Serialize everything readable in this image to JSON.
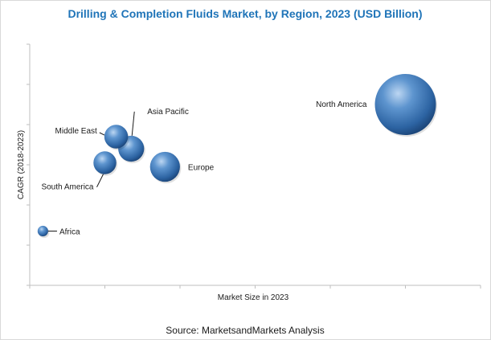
{
  "chart_data": {
    "type": "bubble",
    "title": "Drilling & Completion Fluids Market, by Region, 2023 (USD Billion)",
    "xlabel": "Market Size in 2023",
    "ylabel": "CAGR (2018-2023)",
    "source": "Source: MarketsandMarkets Analysis",
    "xlim": [
      0,
      12
    ],
    "ylim": [
      0,
      6
    ],
    "grid": false,
    "legend": "none",
    "bubble_color": "#2e69a8",
    "series": [
      {
        "name": "North America",
        "x": 10.0,
        "y": 4.5,
        "size": 10.0
      },
      {
        "name": "Asia Pacific",
        "x": 2.7,
        "y": 3.4,
        "size": 1.8
      },
      {
        "name": "Middle East",
        "x": 2.3,
        "y": 3.7,
        "size": 1.5
      },
      {
        "name": "South America",
        "x": 2.0,
        "y": 3.05,
        "size": 1.4
      },
      {
        "name": "Europe",
        "x": 3.6,
        "y": 2.95,
        "size": 2.4
      },
      {
        "name": "Africa",
        "x": 0.35,
        "y": 1.35,
        "size": 0.3
      }
    ]
  }
}
